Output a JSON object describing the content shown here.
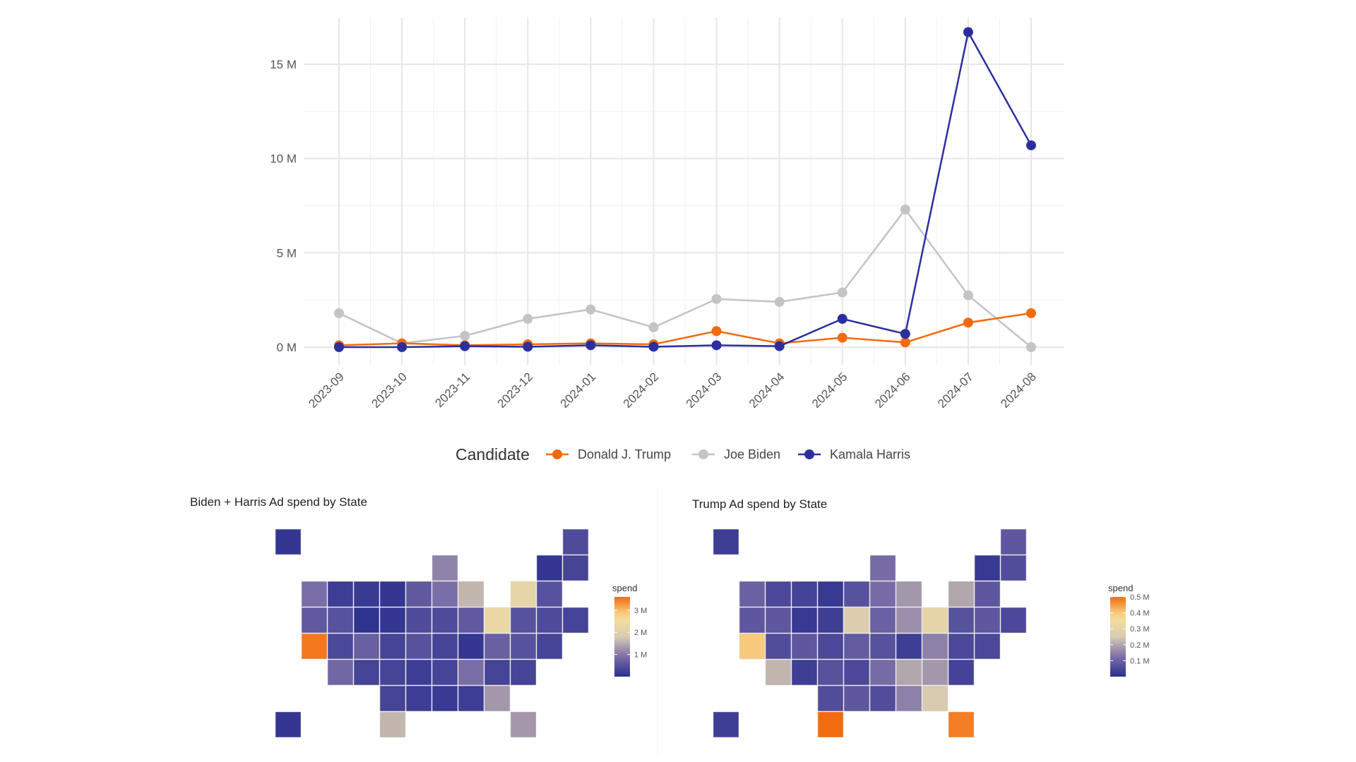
{
  "chart_data": [
    {
      "type": "line",
      "title": "",
      "xlabel": "",
      "ylabel": "",
      "categories": [
        "2023-09",
        "2023-10",
        "2023-11",
        "2023-12",
        "2024-01",
        "2024-02",
        "2024-03",
        "2024-04",
        "2024-05",
        "2024-06",
        "2024-07",
        "2024-08"
      ],
      "y_ticks": [
        {
          "value": 0,
          "label": "0 M"
        },
        {
          "value": 5,
          "label": "5 M"
        },
        {
          "value": 10,
          "label": "10 M"
        },
        {
          "value": 15,
          "label": "15 M"
        }
      ],
      "ylim": [
        -0.5,
        17.5
      ],
      "y_unit": "millions",
      "grid": true,
      "legend": {
        "title": "Candidate",
        "placement": "bottom"
      },
      "series": [
        {
          "name": "Donald J. Trump",
          "color": "#f26b0f",
          "values": [
            0.1,
            0.2,
            0.1,
            0.15,
            0.2,
            0.15,
            0.85,
            0.2,
            0.5,
            0.25,
            1.3,
            1.8
          ]
        },
        {
          "name": "Joe Biden",
          "color": "#c4c4c4",
          "values": [
            1.8,
            0.2,
            0.6,
            1.5,
            2.0,
            1.05,
            2.55,
            2.4,
            2.9,
            7.3,
            2.75,
            0
          ]
        },
        {
          "name": "Kamala Harris",
          "color": "#2b2f9e",
          "values": [
            0,
            0,
            0.05,
            0.02,
            0.1,
            0.02,
            0.1,
            0.05,
            1.5,
            0.7,
            16.7,
            10.7
          ]
        }
      ]
    },
    {
      "type": "heatmap",
      "title": "Biden + Harris Ad spend by State",
      "legend_title": "spend",
      "scale_max": 3.6,
      "scale_ticks": [
        {
          "value": 1,
          "label": "1 M"
        },
        {
          "value": 2,
          "label": "2 M"
        },
        {
          "value": 3,
          "label": "3 M"
        }
      ],
      "values": {
        "WA": 0.9,
        "OR": 0.6,
        "CA": 3.5,
        "NV": 0.5,
        "ID": 0.2,
        "MT": 0.15,
        "WY": 0.05,
        "UT": 0.35,
        "CO": 0.7,
        "AZ": 0.8,
        "NM": 0.3,
        "ND": 0.1,
        "SD": 0.1,
        "NE": 0.3,
        "KS": 0.3,
        "OK": 0.3,
        "TX": 1.6,
        "MN": 0.6,
        "IA": 0.4,
        "MO": 0.5,
        "AR": 0.2,
        "LA": 0.2,
        "WI": 1.1,
        "IL": 0.9,
        "MS": 0.15,
        "MI": 1.6,
        "IN": 0.4,
        "KY": 0.3,
        "TN": 0.3,
        "AL": 0.2,
        "OH": 0.6,
        "GA": 1.3,
        "FL": 1.3,
        "SC": 0.3,
        "NC": 0.9,
        "VA": 0.7,
        "WV": 0.1,
        "PA": 2.3,
        "NY": 2.2,
        "MD": 0.5,
        "DE": 0.3,
        "NJ": 0.5,
        "CT": 0.4,
        "RI": 0.3,
        "MA": 0.5,
        "VT": 0.1,
        "NH": 0.3,
        "ME": 0.4,
        "AK": 0.1,
        "HI": 0.1,
        "DC": 0.3
      }
    },
    {
      "type": "heatmap",
      "title": "Trump Ad spend by State",
      "legend_title": "spend",
      "scale_max": 0.5,
      "scale_ticks": [
        {
          "value": 0.1,
          "label": "0.1 M"
        },
        {
          "value": 0.2,
          "label": "0.2 M"
        },
        {
          "value": 0.3,
          "label": "0.3 M"
        },
        {
          "value": 0.4,
          "label": "0.4 M"
        },
        {
          "value": 0.5,
          "label": "0.5 M"
        }
      ],
      "values": {
        "WA": 0.1,
        "OR": 0.08,
        "CA": 0.4,
        "NV": 0.08,
        "ID": 0.05,
        "MT": 0.04,
        "WY": 0.02,
        "UT": 0.06,
        "CO": 0.08,
        "AZ": 0.22,
        "NM": 0.03,
        "ND": 0.02,
        "SD": 0.03,
        "NE": 0.05,
        "KS": 0.07,
        "OK": 0.06,
        "TX": 0.5,
        "MN": 0.07,
        "IA": 0.26,
        "MO": 0.09,
        "AR": 0.05,
        "LA": 0.08,
        "WI": 0.12,
        "IL": 0.12,
        "MS": 0.06,
        "MI": 0.18,
        "IN": 0.1,
        "KY": 0.07,
        "TN": 0.12,
        "AL": 0.15,
        "OH": 0.17,
        "GA": 0.25,
        "FL": 0.48,
        "SC": 0.18,
        "NC": 0.2,
        "VA": 0.15,
        "WV": 0.03,
        "PA": 0.3,
        "NY": 0.2,
        "MD": 0.05,
        "DE": 0.05,
        "NJ": 0.07,
        "CT": 0.08,
        "RI": 0.05,
        "MA": 0.08,
        "VT": 0.02,
        "NH": 0.06,
        "ME": 0.08,
        "AK": 0.03,
        "HI": 0.03,
        "DC": 0.04
      }
    }
  ],
  "color_scale": [
    "#2b2f8f",
    "#7a6ea8",
    "#d8cbb0",
    "#f8e29a",
    "#f26b0f"
  ]
}
